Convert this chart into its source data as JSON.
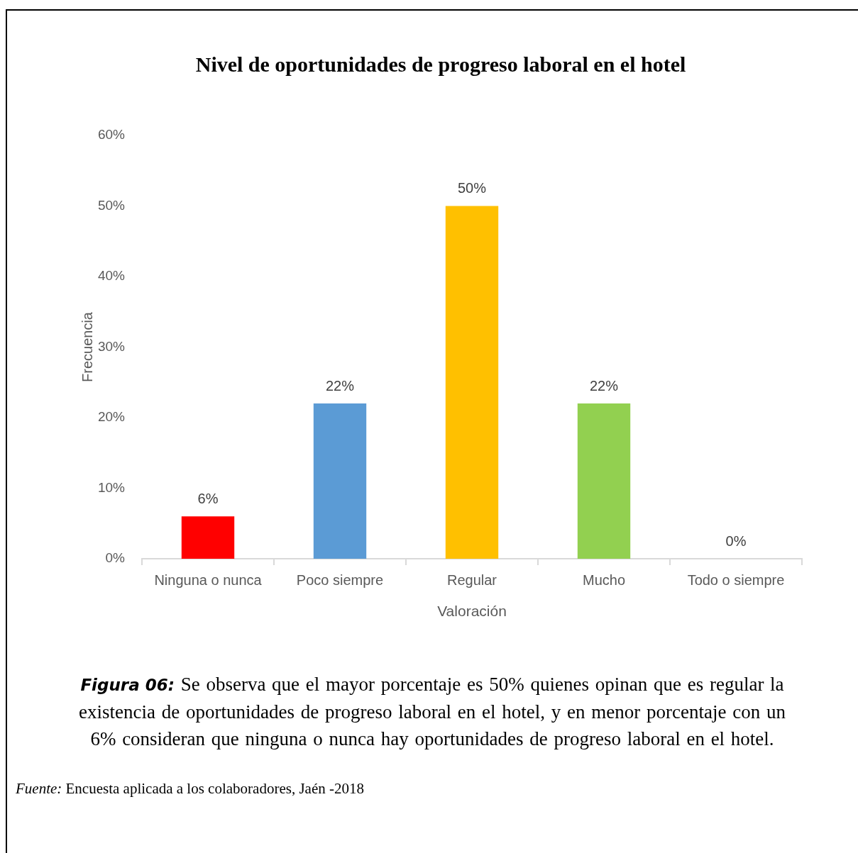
{
  "chart_data": {
    "type": "bar",
    "title": "Nivel de oportunidades de progreso laboral en el hotel",
    "xlabel": "Valoración",
    "ylabel": "Frecuencia",
    "categories": [
      "Ninguna o nunca",
      "Poco siempre",
      "Regular",
      "Mucho",
      "Todo o siempre"
    ],
    "values": [
      6,
      22,
      50,
      22,
      0
    ],
    "value_labels": [
      "6%",
      "22%",
      "50%",
      "22%",
      "0%"
    ],
    "colors": [
      "#ff0000",
      "#5b9bd5",
      "#ffc000",
      "#92d050",
      "#a5a5a5"
    ],
    "ylim": [
      0,
      60
    ],
    "yticks": [
      {
        "value": 0,
        "label": "0%"
      },
      {
        "value": 10,
        "label": "10%"
      },
      {
        "value": 20,
        "label": "20%"
      },
      {
        "value": 30,
        "label": "30%"
      },
      {
        "value": 40,
        "label": "40%"
      },
      {
        "value": 50,
        "label": "50%"
      },
      {
        "value": 60,
        "label": "60%"
      }
    ],
    "annotations": [
      "Figura 06: Se observa que el mayor porcentaje es 50% quienes opinan que es regular la\nexistencia de oportunidades de progreso laboral en el hotel, y en menor porcentaje con un\n6% consideran que ninguna o nunca hay oportunidades de progreso laboral en el hotel.",
      "Fuente: Encuesta aplicada a los colaboradores, Jaén -2018"
    ]
  }
}
